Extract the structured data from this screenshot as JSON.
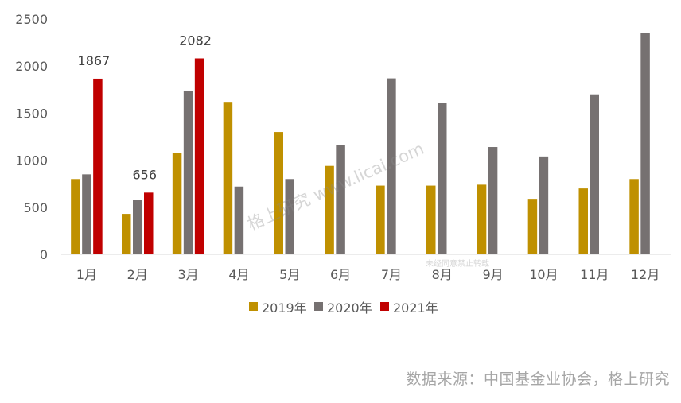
{
  "chart_data": {
    "type": "bar",
    "categories": [
      "1月",
      "2月",
      "3月",
      "4月",
      "5月",
      "6月",
      "7月",
      "8月",
      "9月",
      "10月",
      "11月",
      "12月"
    ],
    "series": [
      {
        "name": "2019年",
        "color": "#BF9000",
        "values": [
          800,
          430,
          1080,
          1620,
          1300,
          940,
          730,
          730,
          740,
          590,
          700,
          800
        ]
      },
      {
        "name": "2020年",
        "color": "#767171",
        "values": [
          850,
          580,
          1740,
          720,
          800,
          1160,
          1870,
          1610,
          1140,
          1040,
          1700,
          2350
        ]
      },
      {
        "name": "2021年",
        "color": "#C00000",
        "values": [
          1867,
          656,
          2082,
          null,
          null,
          null,
          null,
          null,
          null,
          null,
          null,
          null
        ]
      }
    ],
    "data_labels": {
      "series": "2021年",
      "values": [
        "1867",
        "656",
        "2082"
      ]
    },
    "yticks": [
      "0",
      "500",
      "1000",
      "1500",
      "2000",
      "2500"
    ],
    "ylim": [
      0,
      2500
    ],
    "grid": false,
    "legend_position": "bottom"
  },
  "watermark": {
    "text": "格上研究  www.licai.com",
    "sub": "未经同意禁止转载"
  },
  "source_text": "数据来源：中国基金业协会，格上研究"
}
